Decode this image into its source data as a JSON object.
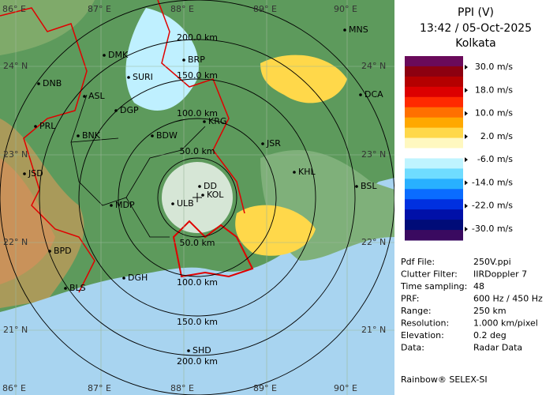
{
  "header": {
    "product": "PPI (V)",
    "time": "13:42 / 05-Oct-2025",
    "site": "Kolkata"
  },
  "scale": {
    "colors": [
      "#6a0a5a",
      "#8c0010",
      "#b40000",
      "#dc0000",
      "#ff2a00",
      "#ff7000",
      "#ffa800",
      "#ffd84a",
      "#fff8c0",
      "#ffffff",
      "#bff4ff",
      "#6fdcff",
      "#28b0ff",
      "#0a6cff",
      "#0030e0",
      "#0010a8",
      "#000c78",
      "#3a0a60"
    ],
    "labels": [
      "30.0 m/s",
      "18.0 m/s",
      "10.0 m/s",
      "2.0 m/s",
      "-6.0 m/s",
      "-14.0 m/s",
      "-22.0 m/s",
      "-30.0 m/s"
    ]
  },
  "info": [
    [
      "Pdf File:",
      "250V.ppi"
    ],
    [
      "Clutter Filter:",
      "IIRDoppler 7"
    ],
    [
      "Time sampling:",
      "48"
    ],
    [
      "PRF:",
      "600 Hz / 450 Hz"
    ],
    [
      "Range:",
      "250 km"
    ],
    [
      "Resolution:",
      "1.000 km/pixel"
    ],
    [
      "Elevation:",
      "0.2 deg"
    ],
    [
      "Data:",
      "Radar Data"
    ]
  ],
  "footer": "Rainbow® SELEX-SI",
  "map": {
    "lon_labels": [
      "86° E",
      "87° E",
      "88° E",
      "89° E",
      "90° E"
    ],
    "lat_labels": [
      "24° N",
      "23° N",
      "22° N",
      "21° N"
    ],
    "rings_upper": [
      "50.0 km",
      "100.0 km",
      "150.0 km",
      "200.0 km"
    ],
    "rings_lower": [
      "50.0 km",
      "100.0 km",
      "150.0 km",
      "200.0 km"
    ],
    "cities": [
      "MNS",
      "DMK",
      "BRP",
      "DNB",
      "SURI",
      "ASL",
      "DGP",
      "DCA",
      "KRG",
      "PRL",
      "BNK",
      "BDW",
      "JSR",
      "KHL",
      "JSD",
      "DD",
      "BSL",
      "KOL",
      "MDP",
      "ULB",
      "BPD",
      "BLS",
      "DGH",
      "SHD"
    ]
  }
}
